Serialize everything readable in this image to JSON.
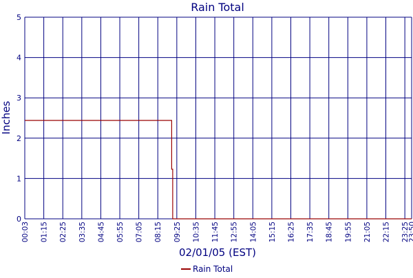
{
  "chart_data": {
    "type": "line",
    "title": "Rain Total",
    "xlabel": "02/01/05 (EST)",
    "ylabel": "Inches",
    "ylim": [
      0,
      5
    ],
    "yticks": [
      "0",
      "1",
      "2",
      "3",
      "4",
      "5"
    ],
    "xticks": [
      "00:03",
      "01:15",
      "02:25",
      "03:35",
      "04:45",
      "05:55",
      "07:05",
      "08:15",
      "09:25",
      "10:35",
      "11:45",
      "12:55",
      "14:05",
      "15:15",
      "16:25",
      "17:35",
      "18:45",
      "19:55",
      "21:05",
      "22:15",
      "23:25",
      "23:50"
    ],
    "grid": true,
    "legend_position": "bottom",
    "series": [
      {
        "name": "Rain Total",
        "color": "#990000",
        "points": [
          {
            "x": "00:03",
            "y": 2.44
          },
          {
            "x": "09:06",
            "y": 2.44
          },
          {
            "x": "09:06",
            "y": 1.23
          },
          {
            "x": "09:10",
            "y": 1.23
          },
          {
            "x": "09:10",
            "y": 0
          },
          {
            "x": "23:50",
            "y": 0
          }
        ]
      }
    ],
    "colors": {
      "frame": "#000080",
      "text": "#000080"
    }
  }
}
